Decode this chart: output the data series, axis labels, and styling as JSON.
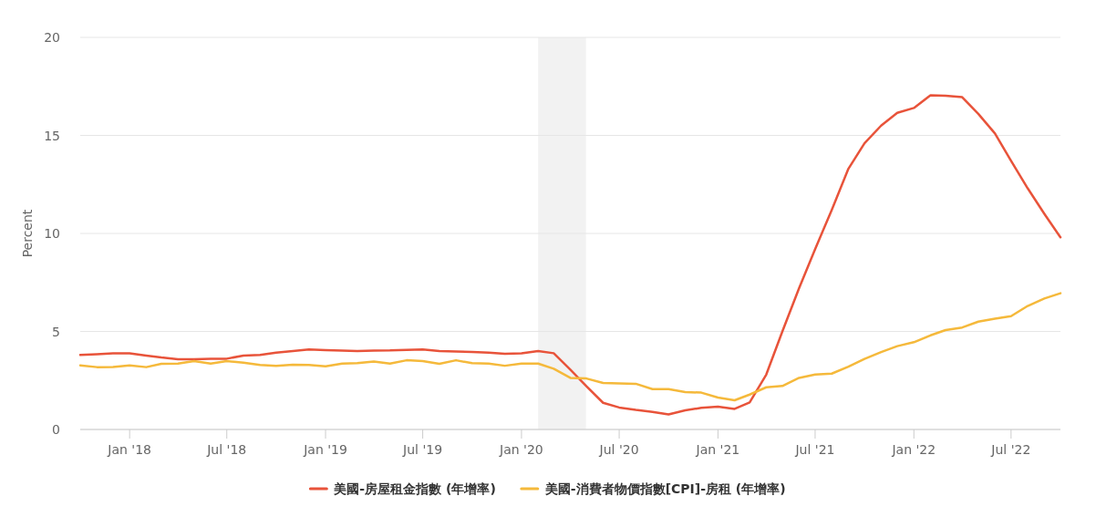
{
  "chart_data": {
    "type": "line",
    "ylabel": "Percent",
    "x": [
      "2017-10",
      "2017-11",
      "2017-12",
      "2018-01",
      "2018-02",
      "2018-03",
      "2018-04",
      "2018-05",
      "2018-06",
      "2018-07",
      "2018-08",
      "2018-09",
      "2018-10",
      "2018-11",
      "2018-12",
      "2019-01",
      "2019-02",
      "2019-03",
      "2019-04",
      "2019-05",
      "2019-06",
      "2019-07",
      "2019-08",
      "2019-09",
      "2019-10",
      "2019-11",
      "2019-12",
      "2020-01",
      "2020-02",
      "2020-03",
      "2020-04",
      "2020-05",
      "2020-06",
      "2020-07",
      "2020-08",
      "2020-09",
      "2020-10",
      "2020-11",
      "2020-12",
      "2021-01",
      "2021-02",
      "2021-03",
      "2021-04",
      "2021-05",
      "2021-06",
      "2021-07",
      "2021-08",
      "2021-09",
      "2021-10",
      "2021-11",
      "2021-12",
      "2022-01",
      "2022-02",
      "2022-03",
      "2022-04",
      "2022-05",
      "2022-06",
      "2022-07",
      "2022-08",
      "2022-09",
      "2022-10"
    ],
    "series": [
      {
        "name": "美國-房屋租金指數 (年增率)",
        "color": "#e8533a",
        "values": [
          3.8,
          3.84,
          3.88,
          3.88,
          3.77,
          3.67,
          3.58,
          3.58,
          3.6,
          3.61,
          3.77,
          3.8,
          3.92,
          4.0,
          4.08,
          4.05,
          4.02,
          4.0,
          4.02,
          4.03,
          4.06,
          4.08,
          4.0,
          3.98,
          3.95,
          3.92,
          3.86,
          3.88,
          4.0,
          3.89,
          3.05,
          2.2,
          1.36,
          1.12,
          1.0,
          0.9,
          0.77,
          0.98,
          1.1,
          1.16,
          1.05,
          1.38,
          2.8,
          5.0,
          7.2,
          9.2,
          11.2,
          13.3,
          14.6,
          15.5,
          16.15,
          16.4,
          17.05,
          17.02,
          16.95,
          16.1,
          15.1,
          13.7,
          12.3,
          11.0,
          9.8
        ]
      },
      {
        "name": "美國-消費者物價指數[CPI]-房租 (年增率)",
        "color": "#f5b93b",
        "values": [
          3.27,
          3.18,
          3.19,
          3.27,
          3.18,
          3.35,
          3.36,
          3.49,
          3.36,
          3.49,
          3.41,
          3.29,
          3.24,
          3.3,
          3.29,
          3.22,
          3.36,
          3.38,
          3.47,
          3.36,
          3.53,
          3.49,
          3.35,
          3.53,
          3.38,
          3.36,
          3.25,
          3.36,
          3.36,
          3.1,
          2.63,
          2.6,
          2.37,
          2.35,
          2.33,
          2.06,
          2.06,
          1.91,
          1.88,
          1.63,
          1.49,
          1.78,
          2.15,
          2.22,
          2.63,
          2.8,
          2.85,
          3.2,
          3.6,
          3.95,
          4.25,
          4.45,
          4.8,
          5.07,
          5.2,
          5.5,
          5.65,
          5.78,
          6.3,
          6.68,
          6.95
        ]
      }
    ],
    "xlim": [
      "2017-10",
      "2022-10"
    ],
    "xticks": [
      {
        "value": "2018-01",
        "label": "Jan '18"
      },
      {
        "value": "2018-07",
        "label": "Jul '18"
      },
      {
        "value": "2019-01",
        "label": "Jan '19"
      },
      {
        "value": "2019-07",
        "label": "Jul '19"
      },
      {
        "value": "2020-01",
        "label": "Jan '20"
      },
      {
        "value": "2020-07",
        "label": "Jul '20"
      },
      {
        "value": "2021-01",
        "label": "Jan '21"
      },
      {
        "value": "2021-07",
        "label": "Jul '21"
      },
      {
        "value": "2022-01",
        "label": "Jan '22"
      },
      {
        "value": "2022-07",
        "label": "Jul '22"
      }
    ],
    "ylim": [
      0,
      20
    ],
    "yticks": [
      0,
      5,
      10,
      15,
      20
    ],
    "bands": [
      {
        "axis": "x",
        "from": "2020-02",
        "to": "2020-04-30",
        "color": "#f2f2f2"
      }
    ],
    "grid": "y",
    "legend": "bottom",
    "marker": "none",
    "line_style": "solid"
  }
}
